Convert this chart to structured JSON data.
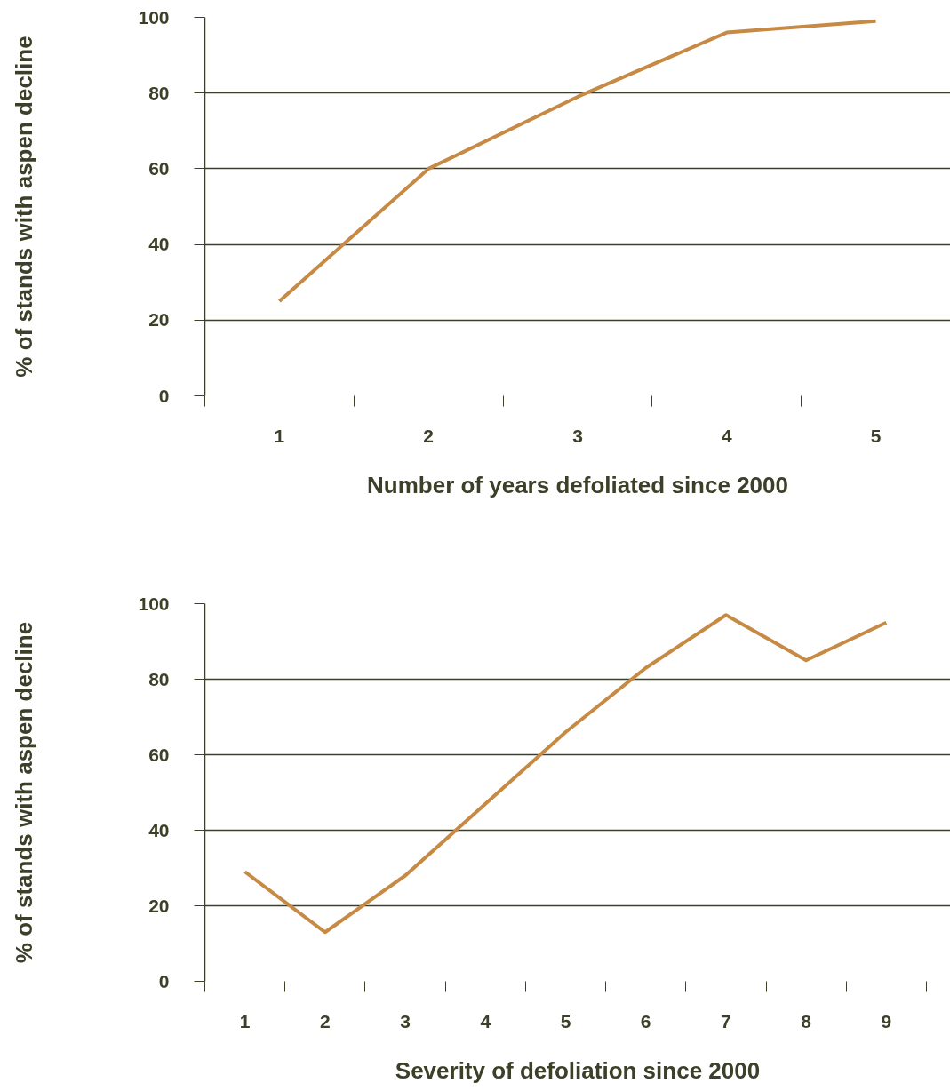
{
  "chart_data": [
    {
      "type": "line",
      "categories": [
        "1",
        "2",
        "3",
        "4",
        "5"
      ],
      "values": [
        25,
        60,
        79,
        96,
        99
      ],
      "color": "#c68a45",
      "ylim": [
        0,
        100
      ],
      "yticks": [
        0,
        20,
        40,
        60,
        80,
        100
      ],
      "ylabel": "% of stands with aspen decline",
      "xlabel": "Number of years defoliated since 2000",
      "grid": "y"
    },
    {
      "type": "line",
      "categories": [
        "1",
        "2",
        "3",
        "4",
        "5",
        "6",
        "7",
        "8",
        "9"
      ],
      "values": [
        29,
        13,
        28,
        47,
        66,
        83,
        97,
        85,
        95
      ],
      "color": "#c68a45",
      "ylim": [
        0,
        100
      ],
      "yticks": [
        0,
        20,
        40,
        60,
        80,
        100
      ],
      "ylabel": "% of stands with aspen decline",
      "xlabel": "Severity of defoliation since 2000",
      "grid": "y"
    }
  ]
}
